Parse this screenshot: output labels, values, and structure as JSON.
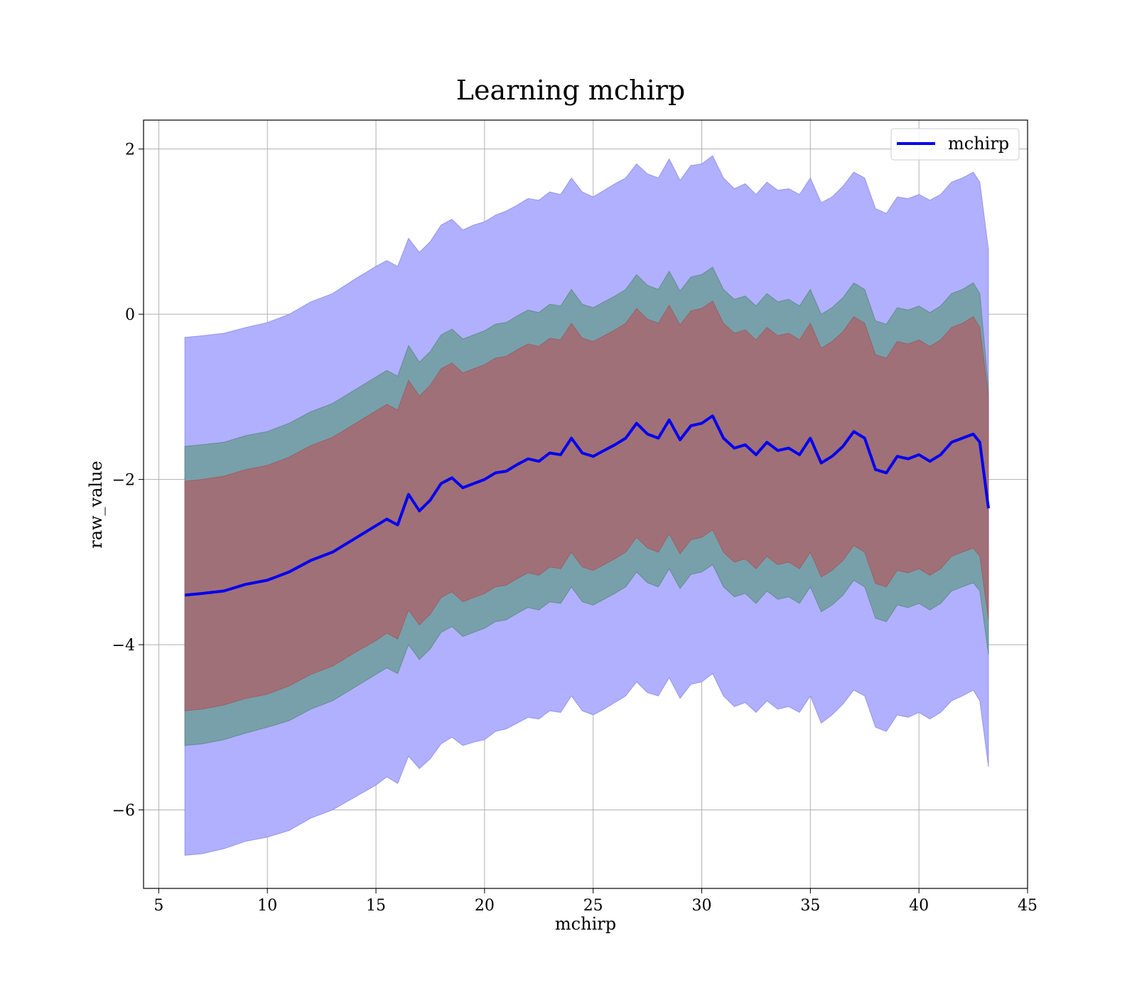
{
  "chart_data": {
    "type": "area",
    "title": "Learning mchirp",
    "xlabel": "mchirp",
    "ylabel": "raw_value",
    "xlim": [
      4.3,
      45
    ],
    "ylim": [
      -6.95,
      2.35
    ],
    "xticks": [
      5,
      10,
      15,
      20,
      25,
      30,
      35,
      40,
      45
    ],
    "yticks": [
      2,
      0,
      -2,
      -4,
      -6
    ],
    "xtick_labels": [
      "5",
      "10",
      "15",
      "20",
      "25",
      "30",
      "35",
      "40",
      "45"
    ],
    "ytick_labels": [
      "2",
      "0",
      "−2",
      "−4",
      "−6"
    ],
    "grid": true,
    "legend": {
      "position": "top-right",
      "entries": [
        "mchirp"
      ]
    },
    "colors": {
      "line": "#0000ee",
      "outer_band": "#b0b0ff",
      "middle_band": "#78a0aa",
      "inner_band": "#a07078"
    },
    "x": [
      6.2,
      7,
      8,
      9,
      10,
      11,
      12,
      13,
      14,
      15,
      15.5,
      16,
      16.5,
      17,
      17.5,
      18,
      18.5,
      19,
      19.5,
      20,
      20.5,
      21,
      21.5,
      22,
      22.5,
      23,
      23.5,
      24,
      24.5,
      25,
      25.5,
      26,
      26.5,
      27,
      27.5,
      28,
      28.5,
      29,
      29.5,
      30,
      30.5,
      31,
      31.5,
      32,
      32.5,
      33,
      33.5,
      34,
      34.5,
      35,
      35.5,
      36,
      36.5,
      37,
      37.5,
      38,
      38.5,
      39,
      39.5,
      40,
      40.5,
      41,
      41.5,
      42,
      42.5,
      42.8,
      43.2
    ],
    "series": [
      {
        "name": "mchirp",
        "values": [
          -3.4,
          -3.38,
          -3.35,
          -3.27,
          -3.22,
          -3.12,
          -2.98,
          -2.88,
          -2.72,
          -2.56,
          -2.48,
          -2.55,
          -2.18,
          -2.38,
          -2.25,
          -2.05,
          -1.98,
          -2.1,
          -2.05,
          -2.0,
          -1.92,
          -1.9,
          -1.82,
          -1.75,
          -1.78,
          -1.68,
          -1.7,
          -1.5,
          -1.68,
          -1.72,
          -1.65,
          -1.58,
          -1.5,
          -1.32,
          -1.45,
          -1.5,
          -1.28,
          -1.52,
          -1.35,
          -1.32,
          -1.23,
          -1.5,
          -1.62,
          -1.58,
          -1.7,
          -1.55,
          -1.65,
          -1.62,
          -1.7,
          -1.5,
          -1.8,
          -1.72,
          -1.6,
          -1.42,
          -1.5,
          -1.88,
          -1.92,
          -1.72,
          -1.75,
          -1.7,
          -1.78,
          -1.7,
          -1.55,
          -1.5,
          -1.45,
          -1.55,
          -2.35
        ]
      }
    ],
    "bands": [
      {
        "lower": [
          -6.55,
          -6.53,
          -6.47,
          -6.38,
          -6.33,
          -6.25,
          -6.1,
          -6.0,
          -5.85,
          -5.7,
          -5.6,
          -5.68,
          -5.35,
          -5.5,
          -5.38,
          -5.2,
          -5.12,
          -5.22,
          -5.18,
          -5.15,
          -5.05,
          -5.02,
          -4.95,
          -4.88,
          -4.9,
          -4.8,
          -4.82,
          -4.62,
          -4.8,
          -4.85,
          -4.78,
          -4.7,
          -4.62,
          -4.45,
          -4.58,
          -4.62,
          -4.4,
          -4.65,
          -4.48,
          -4.45,
          -4.35,
          -4.62,
          -4.75,
          -4.7,
          -4.82,
          -4.68,
          -4.78,
          -4.75,
          -4.82,
          -4.62,
          -4.95,
          -4.85,
          -4.72,
          -4.55,
          -4.62,
          -5.0,
          -5.05,
          -4.85,
          -4.88,
          -4.82,
          -4.9,
          -4.82,
          -4.68,
          -4.62,
          -4.55,
          -4.68,
          -5.48
        ],
        "upper": [
          -0.28,
          -0.26,
          -0.23,
          -0.16,
          -0.1,
          0.0,
          0.15,
          0.25,
          0.42,
          0.58,
          0.65,
          0.58,
          0.92,
          0.75,
          0.88,
          1.08,
          1.15,
          1.02,
          1.08,
          1.12,
          1.2,
          1.25,
          1.32,
          1.4,
          1.38,
          1.48,
          1.45,
          1.65,
          1.48,
          1.42,
          1.5,
          1.58,
          1.65,
          1.82,
          1.7,
          1.65,
          1.88,
          1.62,
          1.8,
          1.82,
          1.92,
          1.65,
          1.52,
          1.58,
          1.45,
          1.6,
          1.5,
          1.52,
          1.45,
          1.65,
          1.35,
          1.42,
          1.55,
          1.72,
          1.65,
          1.28,
          1.22,
          1.42,
          1.4,
          1.45,
          1.38,
          1.45,
          1.6,
          1.65,
          1.72,
          1.6,
          0.78
        ]
      },
      {
        "lower": [
          -5.22,
          -5.2,
          -5.15,
          -5.07,
          -5.0,
          -4.92,
          -4.78,
          -4.68,
          -4.52,
          -4.36,
          -4.28,
          -4.35,
          -4.0,
          -4.18,
          -4.05,
          -3.85,
          -3.78,
          -3.9,
          -3.85,
          -3.8,
          -3.72,
          -3.7,
          -3.62,
          -3.55,
          -3.58,
          -3.48,
          -3.5,
          -3.3,
          -3.48,
          -3.52,
          -3.45,
          -3.38,
          -3.3,
          -3.12,
          -3.25,
          -3.3,
          -3.08,
          -3.32,
          -3.15,
          -3.12,
          -3.03,
          -3.3,
          -3.42,
          -3.38,
          -3.5,
          -3.35,
          -3.45,
          -3.42,
          -3.5,
          -3.3,
          -3.6,
          -3.52,
          -3.4,
          -3.22,
          -3.3,
          -3.68,
          -3.72,
          -3.52,
          -3.55,
          -3.5,
          -3.58,
          -3.5,
          -3.35,
          -3.3,
          -3.25,
          -3.35,
          -4.12
        ],
        "upper": [
          -1.6,
          -1.58,
          -1.55,
          -1.47,
          -1.42,
          -1.32,
          -1.18,
          -1.08,
          -0.92,
          -0.76,
          -0.68,
          -0.75,
          -0.38,
          -0.58,
          -0.45,
          -0.25,
          -0.18,
          -0.3,
          -0.25,
          -0.2,
          -0.12,
          -0.1,
          -0.02,
          0.05,
          0.02,
          0.12,
          0.1,
          0.3,
          0.12,
          0.08,
          0.15,
          0.22,
          0.3,
          0.48,
          0.35,
          0.3,
          0.52,
          0.28,
          0.45,
          0.48,
          0.57,
          0.3,
          0.18,
          0.22,
          0.1,
          0.25,
          0.15,
          0.18,
          0.1,
          0.3,
          0.0,
          0.08,
          0.2,
          0.38,
          0.3,
          -0.08,
          -0.12,
          0.08,
          0.05,
          0.1,
          0.02,
          0.1,
          0.25,
          0.3,
          0.38,
          0.25,
          -0.9
        ]
      },
      {
        "lower": [
          -4.8,
          -4.78,
          -4.73,
          -4.65,
          -4.6,
          -4.5,
          -4.36,
          -4.26,
          -4.1,
          -3.95,
          -3.86,
          -3.93,
          -3.58,
          -3.76,
          -3.63,
          -3.43,
          -3.36,
          -3.48,
          -3.43,
          -3.38,
          -3.3,
          -3.28,
          -3.2,
          -3.13,
          -3.16,
          -3.06,
          -3.08,
          -2.88,
          -3.06,
          -3.1,
          -3.03,
          -2.96,
          -2.88,
          -2.7,
          -2.83,
          -2.88,
          -2.66,
          -2.9,
          -2.73,
          -2.7,
          -2.61,
          -2.88,
          -3.0,
          -2.96,
          -3.08,
          -2.93,
          -3.03,
          -3.0,
          -3.08,
          -2.88,
          -3.18,
          -3.1,
          -2.98,
          -2.8,
          -2.88,
          -3.26,
          -3.3,
          -3.1,
          -3.13,
          -3.08,
          -3.16,
          -3.08,
          -2.93,
          -2.88,
          -2.83,
          -2.93,
          -3.7
        ],
        "upper": [
          -2.02,
          -2.0,
          -1.96,
          -1.88,
          -1.83,
          -1.73,
          -1.59,
          -1.49,
          -1.33,
          -1.17,
          -1.09,
          -1.16,
          -0.8,
          -0.99,
          -0.86,
          -0.66,
          -0.59,
          -0.71,
          -0.66,
          -0.61,
          -0.53,
          -0.51,
          -0.43,
          -0.36,
          -0.39,
          -0.29,
          -0.31,
          -0.11,
          -0.29,
          -0.33,
          -0.26,
          -0.19,
          -0.11,
          0.07,
          -0.06,
          -0.11,
          0.11,
          -0.13,
          0.04,
          0.07,
          0.16,
          -0.11,
          -0.23,
          -0.19,
          -0.31,
          -0.16,
          -0.26,
          -0.23,
          -0.31,
          -0.11,
          -0.41,
          -0.33,
          -0.21,
          -0.03,
          -0.11,
          -0.49,
          -0.53,
          -0.33,
          -0.36,
          -0.31,
          -0.39,
          -0.31,
          -0.16,
          -0.11,
          -0.03,
          -0.16,
          -1.0
        ]
      }
    ]
  }
}
